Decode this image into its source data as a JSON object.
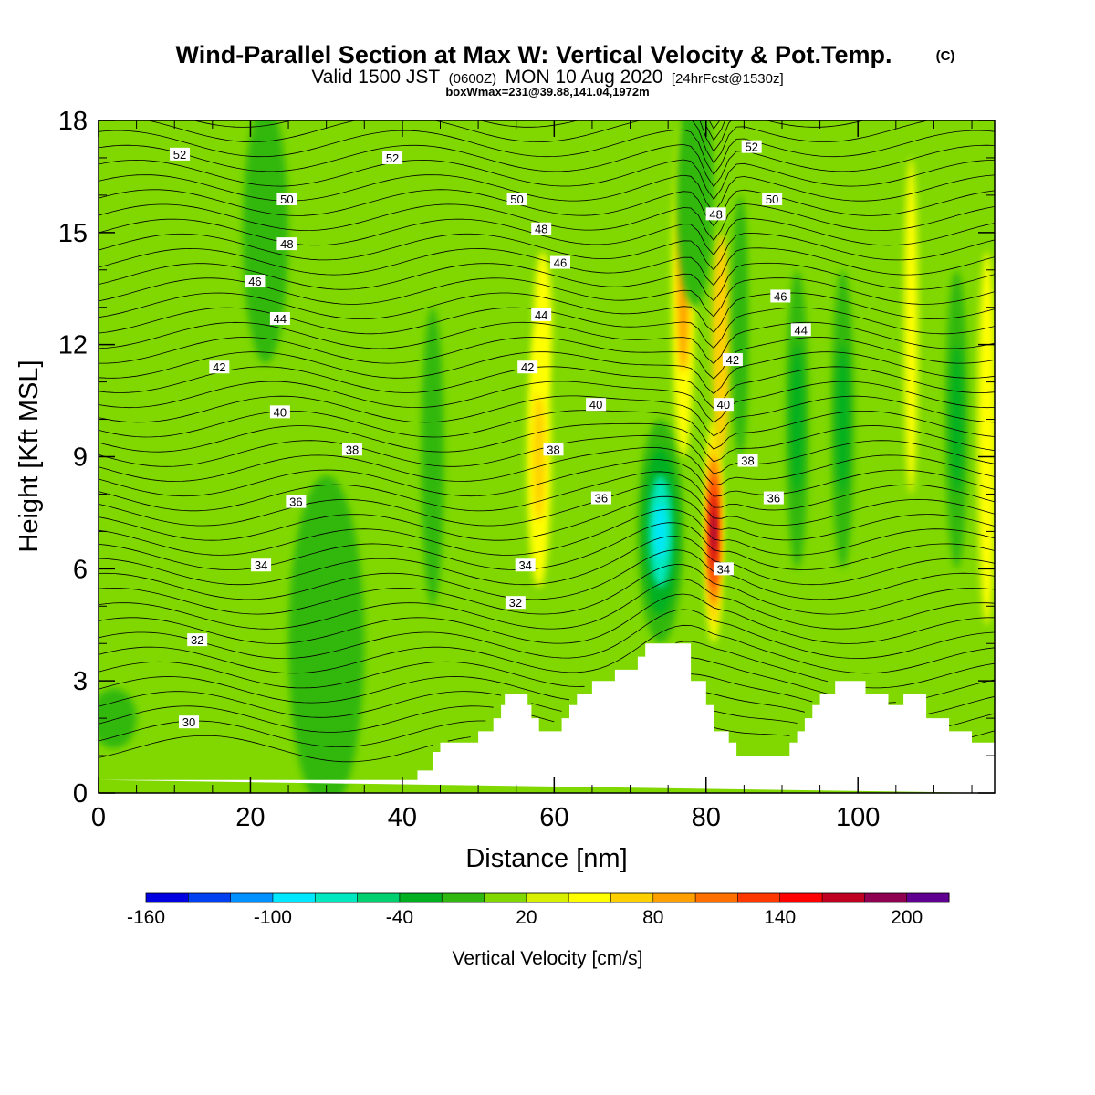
{
  "chart_data": {
    "type": "heatmap",
    "title": "Wind-Parallel Section at Max W: Vertical Velocity & Pot.Temp.",
    "title_mark": "(C)",
    "subtitle_parts": [
      "Valid 1500 JST",
      "(0600Z)",
      "MON 10 Aug 2020",
      "[24hrFcst@1530z]"
    ],
    "subtitle2": "boxWmax=231@39.88,141.04,1972m",
    "xlabel": "Distance [nm]",
    "ylabel": "Height [Kft MSL]",
    "xlim": [
      0,
      118
    ],
    "ylim": [
      0,
      18
    ],
    "x_ticks": [
      "0",
      "20",
      "40",
      "60",
      "80",
      "100"
    ],
    "y_ticks": [
      "0",
      "3",
      "6",
      "9",
      "12",
      "15",
      "18"
    ],
    "colorbar": {
      "label": "Vertical Velocity [cm/s]",
      "tick_labels": [
        "-160",
        "-100",
        "-40",
        "20",
        "80",
        "140",
        "200"
      ],
      "colors": [
        "#0000e0",
        "#0040f0",
        "#0090ff",
        "#00e8ff",
        "#00e8c0",
        "#00d070",
        "#00b020",
        "#30b810",
        "#80d800",
        "#d8f000",
        "#ffff00",
        "#ffd000",
        "#ffa000",
        "#ff7000",
        "#ff3800",
        "#ff0000",
        "#c00020",
        "#900050",
        "#600090"
      ]
    },
    "terrain": [
      [
        0,
        0.35
      ],
      [
        42,
        0.35
      ],
      [
        42,
        0.6
      ],
      [
        44,
        0.6
      ],
      [
        44,
        1.1
      ],
      [
        45,
        1.1
      ],
      [
        45,
        1.35
      ],
      [
        50,
        1.35
      ],
      [
        50,
        1.65
      ],
      [
        52,
        1.65
      ],
      [
        52,
        2.0
      ],
      [
        53,
        2.0
      ],
      [
        53,
        2.35
      ],
      [
        53.5,
        2.35
      ],
      [
        53.5,
        2.65
      ],
      [
        56.5,
        2.65
      ],
      [
        56.5,
        2.35
      ],
      [
        57,
        2.35
      ],
      [
        57,
        2.0
      ],
      [
        58,
        2.0
      ],
      [
        58,
        1.65
      ],
      [
        61,
        1.65
      ],
      [
        61,
        2.0
      ],
      [
        62,
        2.0
      ],
      [
        62,
        2.35
      ],
      [
        63,
        2.35
      ],
      [
        63,
        2.65
      ],
      [
        65,
        2.65
      ],
      [
        65,
        3.0
      ],
      [
        68,
        3.0
      ],
      [
        68,
        3.3
      ],
      [
        71,
        3.3
      ],
      [
        71,
        3.65
      ],
      [
        72,
        3.65
      ],
      [
        72,
        4.0
      ],
      [
        78,
        4.0
      ],
      [
        78,
        3.0
      ],
      [
        80,
        3.0
      ],
      [
        80,
        2.35
      ],
      [
        81,
        2.35
      ],
      [
        81,
        1.65
      ],
      [
        83,
        1.65
      ],
      [
        83,
        1.35
      ],
      [
        84,
        1.35
      ],
      [
        84,
        1.0
      ],
      [
        91,
        1.0
      ],
      [
        91,
        1.35
      ],
      [
        92,
        1.35
      ],
      [
        92,
        1.65
      ],
      [
        93,
        1.65
      ],
      [
        93,
        2.0
      ],
      [
        94,
        2.0
      ],
      [
        94,
        2.35
      ],
      [
        95,
        2.35
      ],
      [
        95,
        2.65
      ],
      [
        97,
        2.65
      ],
      [
        97,
        3.0
      ],
      [
        101,
        3.0
      ],
      [
        101,
        2.65
      ],
      [
        104,
        2.65
      ],
      [
        104,
        2.35
      ],
      [
        106,
        2.35
      ],
      [
        106,
        2.65
      ],
      [
        109,
        2.65
      ],
      [
        109,
        2.0
      ],
      [
        112,
        2.0
      ],
      [
        112,
        1.65
      ],
      [
        115,
        1.65
      ],
      [
        115,
        1.35
      ],
      [
        118,
        1.35
      ],
      [
        118,
        0
      ]
    ],
    "w_features": [
      {
        "x": 58,
        "y": 9.0,
        "w": 1.6,
        "h": 3.5,
        "v": 45
      },
      {
        "x": 58.5,
        "y": 12.5,
        "w": 1.2,
        "h": 2.0,
        "v": 30
      },
      {
        "x": 74,
        "y": 7.0,
        "w": 3.0,
        "h": 3.0,
        "v": -110
      },
      {
        "x": 77,
        "y": 13.5,
        "w": 1.5,
        "h": 4.5,
        "v": 65
      },
      {
        "x": 78.5,
        "y": 16.0,
        "w": 2.5,
        "h": 3.0,
        "v": -30
      },
      {
        "x": 81,
        "y": 7.0,
        "w": 1.2,
        "h": 3.0,
        "v": 170
      },
      {
        "x": 82,
        "y": 12.0,
        "w": 1.2,
        "h": 3.0,
        "v": 40
      },
      {
        "x": 84.5,
        "y": 12.5,
        "w": 1.2,
        "h": 3.5,
        "v": -30
      },
      {
        "x": 87,
        "y": 13.0,
        "w": 1.0,
        "h": 4.0,
        "v": -20
      },
      {
        "x": 107,
        "y": 12.5,
        "w": 0.9,
        "h": 4.5,
        "v": 35
      },
      {
        "x": 117,
        "y": 9.5,
        "w": 1.2,
        "h": 5.0,
        "v": 30
      },
      {
        "x": 2,
        "y": 2.0,
        "w": 3.0,
        "h": 0.8,
        "v": -40
      },
      {
        "x": 30,
        "y": 4.0,
        "w": 5.0,
        "h": 4.5,
        "v": -40
      },
      {
        "x": 22,
        "y": 15.0,
        "w": 3.0,
        "h": 3.5,
        "v": -25
      },
      {
        "x": 44,
        "y": 9.0,
        "w": 1.5,
        "h": 4.0,
        "v": -40
      },
      {
        "x": 92,
        "y": 10.0,
        "w": 1.5,
        "h": 4.0,
        "v": -45
      },
      {
        "x": 98,
        "y": 10.0,
        "w": 1.5,
        "h": 4.0,
        "v": -45
      },
      {
        "x": 113,
        "y": 10.0,
        "w": 1.5,
        "h": 4.0,
        "v": -45
      }
    ],
    "contour_labels": [
      {
        "text": "52",
        "x": 10.7,
        "y": 17.1
      },
      {
        "text": "52",
        "x": 38.7,
        "y": 17.0
      },
      {
        "text": "52",
        "x": 86.0,
        "y": 17.3
      },
      {
        "text": "50",
        "x": 24.8,
        "y": 15.9
      },
      {
        "text": "50",
        "x": 55.1,
        "y": 15.9
      },
      {
        "text": "50",
        "x": 88.7,
        "y": 15.9
      },
      {
        "text": "48",
        "x": 24.8,
        "y": 14.7
      },
      {
        "text": "48",
        "x": 58.3,
        "y": 15.1
      },
      {
        "text": "48",
        "x": 81.3,
        "y": 15.5
      },
      {
        "text": "46",
        "x": 20.6,
        "y": 13.7
      },
      {
        "text": "46",
        "x": 60.8,
        "y": 14.2
      },
      {
        "text": "46",
        "x": 89.8,
        "y": 13.3
      },
      {
        "text": "44",
        "x": 23.9,
        "y": 12.7
      },
      {
        "text": "44",
        "x": 58.3,
        "y": 12.8
      },
      {
        "text": "44",
        "x": 92.5,
        "y": 12.4
      },
      {
        "text": "42",
        "x": 15.9,
        "y": 11.4
      },
      {
        "text": "42",
        "x": 56.5,
        "y": 11.4
      },
      {
        "text": "42",
        "x": 83.5,
        "y": 11.6
      },
      {
        "text": "40",
        "x": 23.9,
        "y": 10.2
      },
      {
        "text": "40",
        "x": 65.5,
        "y": 10.4
      },
      {
        "text": "40",
        "x": 82.3,
        "y": 10.4
      },
      {
        "text": "38",
        "x": 33.4,
        "y": 9.2
      },
      {
        "text": "38",
        "x": 59.9,
        "y": 9.2
      },
      {
        "text": "38",
        "x": 85.5,
        "y": 8.9
      },
      {
        "text": "36",
        "x": 26.0,
        "y": 7.8
      },
      {
        "text": "36",
        "x": 66.2,
        "y": 7.9
      },
      {
        "text": "36",
        "x": 88.9,
        "y": 7.9
      },
      {
        "text": "34",
        "x": 21.4,
        "y": 6.1
      },
      {
        "text": "34",
        "x": 56.2,
        "y": 6.1
      },
      {
        "text": "34",
        "x": 82.3,
        "y": 6.0
      },
      {
        "text": "32",
        "x": 54.9,
        "y": 5.1
      },
      {
        "text": "32",
        "x": 13.0,
        "y": 4.1
      },
      {
        "text": "30",
        "x": 11.9,
        "y": 1.9
      }
    ]
  }
}
